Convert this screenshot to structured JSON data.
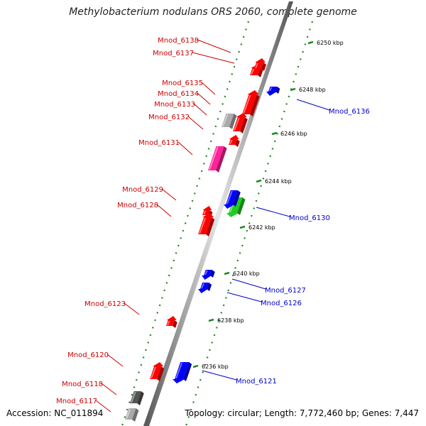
{
  "title": "Methylobacterium nodulans ORS 2060, complete genome",
  "footer": {
    "accession": "Accession: NC_011894",
    "stats": "Topology: circular; Length: 7,772,460 bp; Genes: 7,447"
  },
  "scale_ticks": [
    {
      "label": "6250 kbp",
      "kbp": 6250
    },
    {
      "label": "6248 kbp",
      "kbp": 6248
    },
    {
      "label": "6246 kbp",
      "kbp": 6246
    },
    {
      "label": "6244 kbp",
      "kbp": 6244
    },
    {
      "label": "6242 kbp",
      "kbp": 6242
    },
    {
      "label": "6240 kbp",
      "kbp": 6240
    },
    {
      "label": "6238 kbp",
      "kbp": 6238
    },
    {
      "label": "6236 kbp",
      "kbp": 6236
    }
  ],
  "reverse_strand_genes": [
    {
      "name": "Mnod_6138",
      "color": "#ff0000"
    },
    {
      "name": "Mnod_6137",
      "color": "#ff0000"
    },
    {
      "name": "Mnod_6135",
      "color": "#ff0000"
    },
    {
      "name": "Mnod_6134",
      "color": "#ff0000"
    },
    {
      "name": "Mnod_6133",
      "color": "#aaaaaa"
    },
    {
      "name": "Mnod_6132",
      "color": "#ff0000"
    },
    {
      "name": "Mnod_6131",
      "color": "#ff2299"
    },
    {
      "name": "Mnod_6129",
      "color": "#ff0000"
    },
    {
      "name": "Mnod_6128",
      "color": "#ff0000"
    },
    {
      "name": "Mnod_6123",
      "color": "#ff0000"
    },
    {
      "name": "Mnod_6120",
      "color": "#ff0000"
    },
    {
      "name": "Mnod_6118",
      "color": "#555555"
    },
    {
      "name": "Mnod_6117",
      "color": "#aaaaaa"
    }
  ],
  "forward_strand_genes": [
    {
      "name": "Mnod_6136",
      "color": "#0000ff"
    },
    {
      "name": "Mnod_6130",
      "color": "#22cc22"
    },
    {
      "name": "Mnod_6127",
      "color": "#0000ff"
    },
    {
      "name": "Mnod_6126",
      "color": "#0000ff"
    },
    {
      "name": "Mnod_6121",
      "color": "#0000ff"
    }
  ],
  "colors": {
    "reverse_label": "#cc0000",
    "forward_label": "#0000cc",
    "tick_marks": "#228822",
    "backbone": "#888888"
  }
}
